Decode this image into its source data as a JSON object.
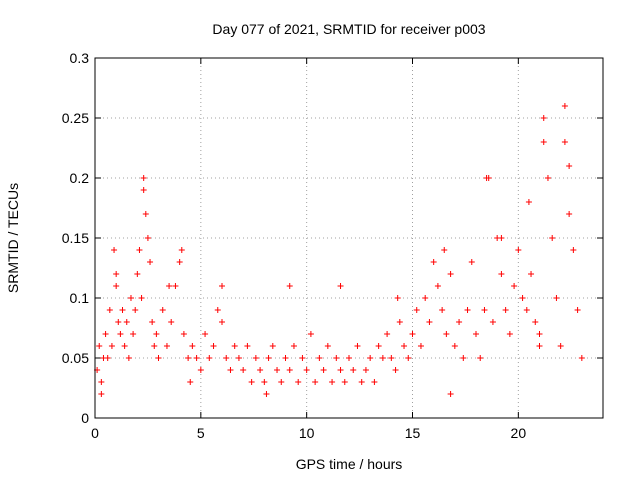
{
  "chart_data": {
    "type": "scatter",
    "title": "Day 077 of 2021, SRMTID for receiver p003",
    "xlabel": "GPS time / hours",
    "ylabel": "SRMTID / TECUs",
    "xlim": [
      0,
      24
    ],
    "ylim": [
      0,
      0.3
    ],
    "x_ticks": [
      0,
      5,
      10,
      15,
      20
    ],
    "x_tick_labels": [
      "0",
      "5",
      "10",
      "15",
      "20"
    ],
    "y_ticks": [
      0,
      0.05,
      0.1,
      0.15,
      0.2,
      0.25,
      0.3
    ],
    "y_tick_labels": [
      "0",
      "0.05",
      "0.1",
      "0.15",
      "0.2",
      "0.25",
      "0.3"
    ],
    "grid": true,
    "marker": "+",
    "color": "#ff0000",
    "series": [
      {
        "name": "SRMTID",
        "points": [
          [
            0.1,
            0.04
          ],
          [
            0.2,
            0.06
          ],
          [
            0.3,
            0.03
          ],
          [
            0.4,
            0.05
          ],
          [
            0.5,
            0.07
          ],
          [
            0.6,
            0.05
          ],
          [
            0.7,
            0.09
          ],
          [
            0.8,
            0.06
          ],
          [
            0.9,
            0.14
          ],
          [
            1.0,
            0.11
          ],
          [
            1.1,
            0.08
          ],
          [
            1.2,
            0.07
          ],
          [
            1.3,
            0.09
          ],
          [
            1.4,
            0.06
          ],
          [
            1.5,
            0.08
          ],
          [
            1.6,
            0.05
          ],
          [
            1.7,
            0.1
          ],
          [
            1.8,
            0.07
          ],
          [
            1.9,
            0.09
          ],
          [
            2.0,
            0.12
          ],
          [
            2.1,
            0.14
          ],
          [
            2.2,
            0.1
          ],
          [
            2.3,
            0.19
          ],
          [
            2.4,
            0.17
          ],
          [
            2.5,
            0.15
          ],
          [
            2.6,
            0.13
          ],
          [
            2.7,
            0.08
          ],
          [
            2.8,
            0.06
          ],
          [
            2.9,
            0.07
          ],
          [
            3.0,
            0.05
          ],
          [
            3.2,
            0.09
          ],
          [
            3.4,
            0.06
          ],
          [
            3.6,
            0.08
          ],
          [
            3.8,
            0.11
          ],
          [
            4.0,
            0.13
          ],
          [
            4.2,
            0.07
          ],
          [
            4.4,
            0.05
          ],
          [
            4.6,
            0.06
          ],
          [
            4.8,
            0.05
          ],
          [
            5.0,
            0.04
          ],
          [
            5.2,
            0.07
          ],
          [
            5.4,
            0.05
          ],
          [
            5.6,
            0.06
          ],
          [
            5.8,
            0.09
          ],
          [
            6.0,
            0.08
          ],
          [
            6.2,
            0.05
          ],
          [
            6.4,
            0.04
          ],
          [
            6.6,
            0.06
          ],
          [
            6.8,
            0.05
          ],
          [
            7.0,
            0.04
          ],
          [
            7.2,
            0.06
          ],
          [
            7.4,
            0.03
          ],
          [
            7.6,
            0.05
          ],
          [
            7.8,
            0.04
          ],
          [
            8.0,
            0.03
          ],
          [
            8.2,
            0.05
          ],
          [
            8.4,
            0.06
          ],
          [
            8.6,
            0.04
          ],
          [
            8.8,
            0.03
          ],
          [
            9.0,
            0.05
          ],
          [
            9.2,
            0.04
          ],
          [
            9.4,
            0.06
          ],
          [
            9.6,
            0.03
          ],
          [
            9.8,
            0.05
          ],
          [
            10.0,
            0.04
          ],
          [
            10.2,
            0.07
          ],
          [
            10.4,
            0.03
          ],
          [
            10.6,
            0.05
          ],
          [
            10.8,
            0.04
          ],
          [
            11.0,
            0.06
          ],
          [
            11.2,
            0.03
          ],
          [
            11.4,
            0.05
          ],
          [
            11.6,
            0.04
          ],
          [
            11.8,
            0.03
          ],
          [
            12.0,
            0.05
          ],
          [
            12.2,
            0.04
          ],
          [
            12.4,
            0.06
          ],
          [
            12.6,
            0.03
          ],
          [
            12.8,
            0.04
          ],
          [
            13.0,
            0.05
          ],
          [
            13.2,
            0.03
          ],
          [
            13.4,
            0.06
          ],
          [
            13.6,
            0.05
          ],
          [
            13.8,
            0.07
          ],
          [
            14.0,
            0.05
          ],
          [
            14.2,
            0.04
          ],
          [
            14.4,
            0.08
          ],
          [
            14.6,
            0.06
          ],
          [
            14.8,
            0.05
          ],
          [
            15.0,
            0.07
          ],
          [
            15.2,
            0.09
          ],
          [
            15.4,
            0.06
          ],
          [
            15.6,
            0.1
          ],
          [
            15.8,
            0.08
          ],
          [
            16.0,
            0.13
          ],
          [
            16.2,
            0.11
          ],
          [
            16.4,
            0.09
          ],
          [
            16.6,
            0.07
          ],
          [
            16.8,
            0.12
          ],
          [
            17.0,
            0.06
          ],
          [
            17.2,
            0.08
          ],
          [
            17.4,
            0.05
          ],
          [
            17.6,
            0.09
          ],
          [
            17.8,
            0.13
          ],
          [
            18.0,
            0.07
          ],
          [
            18.2,
            0.05
          ],
          [
            18.4,
            0.09
          ],
          [
            18.6,
            0.2
          ],
          [
            18.8,
            0.08
          ],
          [
            19.0,
            0.15
          ],
          [
            19.2,
            0.12
          ],
          [
            19.4,
            0.09
          ],
          [
            19.6,
            0.07
          ],
          [
            19.8,
            0.11
          ],
          [
            20.0,
            0.14
          ],
          [
            20.2,
            0.1
          ],
          [
            20.4,
            0.09
          ],
          [
            20.6,
            0.12
          ],
          [
            20.8,
            0.08
          ],
          [
            21.0,
            0.07
          ],
          [
            21.2,
            0.23
          ],
          [
            21.4,
            0.2
          ],
          [
            21.6,
            0.15
          ],
          [
            21.8,
            0.1
          ],
          [
            22.0,
            0.06
          ],
          [
            22.2,
            0.26
          ],
          [
            22.4,
            0.21
          ],
          [
            22.6,
            0.14
          ],
          [
            22.8,
            0.09
          ],
          [
            23.0,
            0.05
          ],
          [
            0.3,
            0.02
          ],
          [
            1.0,
            0.12
          ],
          [
            2.3,
            0.2
          ],
          [
            3.5,
            0.11
          ],
          [
            4.1,
            0.14
          ],
          [
            6.0,
            0.11
          ],
          [
            9.2,
            0.11
          ],
          [
            11.6,
            0.11
          ],
          [
            14.3,
            0.1
          ],
          [
            16.5,
            0.14
          ],
          [
            18.5,
            0.2
          ],
          [
            19.2,
            0.15
          ],
          [
            20.5,
            0.18
          ],
          [
            21.2,
            0.25
          ],
          [
            22.2,
            0.23
          ],
          [
            22.4,
            0.17
          ],
          [
            21.0,
            0.06
          ],
          [
            16.8,
            0.02
          ],
          [
            4.5,
            0.03
          ],
          [
            8.1,
            0.02
          ]
        ]
      }
    ]
  }
}
